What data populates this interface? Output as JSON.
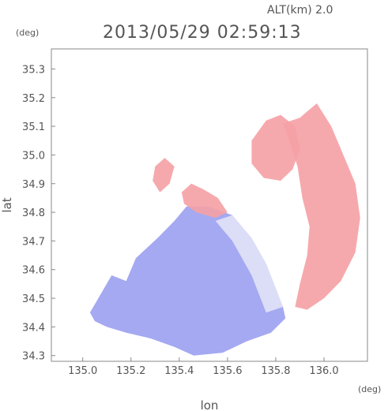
{
  "header": {
    "altitude_text": "ALT(km) 2.0",
    "datetime_text": "2013/05/29 02:59:13",
    "lat_unit": "(deg)",
    "lon_unit": "(deg)"
  },
  "chart_data": {
    "type": "heatmap",
    "title": "2013/05/29 02:59:13",
    "subtitle": "ALT(km) 2.0",
    "xlabel": "lon",
    "ylabel": "lat",
    "x_unit": "(deg)",
    "y_unit": "(deg)",
    "xlim": [
      134.87,
      136.18
    ],
    "ylim": [
      34.28,
      35.37
    ],
    "x_ticks": [
      135.0,
      135.2,
      135.4,
      135.6,
      135.8,
      136.0
    ],
    "x_tick_labels": [
      "135.0",
      "135.2",
      "135.4",
      "135.6",
      "135.8",
      "136.0"
    ],
    "y_ticks": [
      34.3,
      34.4,
      34.5,
      34.6,
      34.7,
      34.8,
      34.9,
      35.0,
      35.1,
      35.2,
      35.3
    ],
    "y_tick_labels": [
      "34.3",
      "34.4",
      "34.5",
      "34.6",
      "34.7",
      "34.8",
      "34.9",
      "35.0",
      "35.1",
      "35.2",
      "35.3"
    ],
    "grid": false,
    "colors": {
      "negative": "#9aa0f0",
      "neutral": "#f4f4f8",
      "positive": "#f5a0a4"
    },
    "regions": [
      {
        "name": "negative-main",
        "sign": "negative",
        "outline": [
          [
            135.03,
            34.45
          ],
          [
            135.12,
            34.58
          ],
          [
            135.18,
            34.56
          ],
          [
            135.22,
            34.64
          ],
          [
            135.31,
            34.71
          ],
          [
            135.38,
            34.77
          ],
          [
            135.43,
            34.82
          ],
          [
            135.52,
            34.82
          ],
          [
            135.62,
            34.79
          ],
          [
            135.7,
            34.71
          ],
          [
            135.76,
            34.62
          ],
          [
            135.83,
            34.47
          ],
          [
            135.84,
            34.43
          ],
          [
            135.78,
            34.38
          ],
          [
            135.68,
            34.35
          ],
          [
            135.58,
            34.31
          ],
          [
            135.46,
            34.3
          ],
          [
            135.38,
            34.33
          ],
          [
            135.28,
            34.36
          ],
          [
            135.18,
            34.38
          ],
          [
            135.1,
            34.4
          ],
          [
            135.05,
            34.42
          ]
        ]
      },
      {
        "name": "positive-east",
        "sign": "positive",
        "outline": [
          [
            135.83,
            35.11
          ],
          [
            135.9,
            35.13
          ],
          [
            135.97,
            35.18
          ],
          [
            136.03,
            35.1
          ],
          [
            136.08,
            35.0
          ],
          [
            136.13,
            34.9
          ],
          [
            136.15,
            34.78
          ],
          [
            136.13,
            34.66
          ],
          [
            136.07,
            34.56
          ],
          [
            136.0,
            34.5
          ],
          [
            135.93,
            34.46
          ],
          [
            135.88,
            34.47
          ],
          [
            135.9,
            34.55
          ],
          [
            135.93,
            34.65
          ],
          [
            135.94,
            34.75
          ],
          [
            135.91,
            34.85
          ],
          [
            135.89,
            34.96
          ],
          [
            135.86,
            35.04
          ]
        ]
      },
      {
        "name": "positive-north",
        "sign": "positive",
        "outline": [
          [
            135.7,
            35.05
          ],
          [
            135.76,
            35.12
          ],
          [
            135.82,
            35.14
          ],
          [
            135.88,
            35.1
          ],
          [
            135.9,
            35.02
          ],
          [
            135.87,
            34.95
          ],
          [
            135.82,
            34.91
          ],
          [
            135.75,
            34.92
          ],
          [
            135.7,
            34.97
          ]
        ]
      },
      {
        "name": "positive-northwest",
        "sign": "positive",
        "outline": [
          [
            135.41,
            34.87
          ],
          [
            135.45,
            34.9
          ],
          [
            135.5,
            34.88
          ],
          [
            135.56,
            34.85
          ],
          [
            135.6,
            34.8
          ],
          [
            135.55,
            34.78
          ],
          [
            135.47,
            34.8
          ],
          [
            135.42,
            34.83
          ]
        ]
      },
      {
        "name": "speckle-northwest",
        "sign": "positive",
        "outline": [
          [
            135.3,
            34.96
          ],
          [
            135.34,
            34.99
          ],
          [
            135.38,
            34.96
          ],
          [
            135.36,
            34.9
          ],
          [
            135.32,
            34.87
          ],
          [
            135.29,
            34.91
          ]
        ]
      }
    ]
  }
}
